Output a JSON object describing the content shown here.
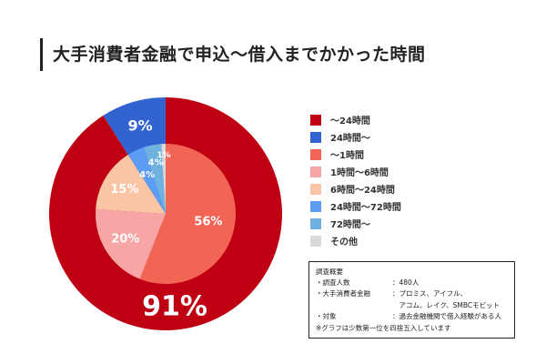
{
  "title": "大手消費者金融で申込〜借入までかかった時間",
  "colors": {
    "outer_main": "#bf0013",
    "outer_minor": "#3163d1",
    "inner": [
      "#f26454",
      "#f8a5a5",
      "#fac5a4",
      "#5c9cf2",
      "#6fb2e0",
      "#d9d9d9"
    ]
  },
  "chart_data": {
    "type": "pie",
    "title": "大手消費者金融で申込〜借入までかかった時間",
    "outer_ring": [
      {
        "label": "〜24時間",
        "value": 91,
        "display": "91%",
        "color": "#bf0013"
      },
      {
        "label": "24時間〜",
        "value": 9,
        "display": "9%",
        "color": "#3163d1"
      }
    ],
    "inner_pie": [
      {
        "label": "〜1時間",
        "value": 56,
        "display": "56%",
        "color": "#f26454"
      },
      {
        "label": "1時間〜6時間",
        "value": 20,
        "display": "20%",
        "color": "#f8a5a5"
      },
      {
        "label": "6時間〜24時間",
        "value": 15,
        "display": "15%",
        "color": "#fac5a4"
      },
      {
        "label": "24時間〜72時間",
        "value": 4,
        "display": "4%",
        "color": "#5c9cf2"
      },
      {
        "label": "72時間〜",
        "value": 4,
        "display": "4%",
        "color": "#6fb2e0"
      },
      {
        "label": "その他",
        "value": 1,
        "display": "1%",
        "color": "#d9d9d9"
      }
    ]
  },
  "legend": [
    {
      "label": "〜24時間",
      "color": "#bf0013"
    },
    {
      "label": "24時間〜",
      "color": "#3163d1"
    },
    {
      "label": "〜1時間",
      "color": "#f26454"
    },
    {
      "label": "1時間〜6時間",
      "color": "#f8a5a5"
    },
    {
      "label": "6時間〜24時間",
      "color": "#fac5a4"
    },
    {
      "label": "24時間〜72時間",
      "color": "#5c9cf2"
    },
    {
      "label": "72時間〜",
      "color": "#6fb2e0"
    },
    {
      "label": "その他",
      "color": "#d9d9d9"
    }
  ],
  "note": {
    "heading": "調査概要",
    "rows": [
      {
        "label": "・調査人数",
        "value": "：480人"
      },
      {
        "label": "・大手消費者金融",
        "value": "：プロミス、アイフル、"
      },
      {
        "label": "",
        "value": "　アコム、レイク、SMBCモビット"
      },
      {
        "label": "・対象",
        "value": "：過去金融機関で借入経験がある人"
      }
    ],
    "footer": "※グラフは少数第一位を四捨五入しています"
  }
}
